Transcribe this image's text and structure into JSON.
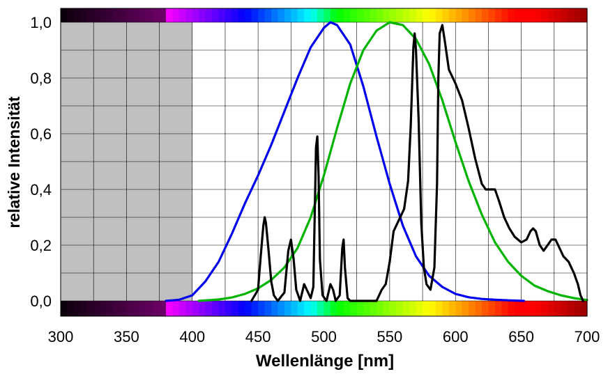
{
  "chart_data": {
    "type": "line",
    "xlabel": "Wellenlänge [nm]",
    "ylabel": "relative Intensität",
    "xlim": [
      300,
      700
    ],
    "ylim": [
      0,
      1
    ],
    "x_ticks": [
      "300",
      "350",
      "400",
      "450",
      "500",
      "550",
      "600",
      "650",
      "700"
    ],
    "y_ticks": [
      "0,0",
      "0,2",
      "0,4",
      "0,6",
      "0,8",
      "1,0"
    ],
    "grid": true,
    "shaded_region": {
      "x": [
        300,
        400
      ],
      "color": "#c0c0c0"
    },
    "spectrum_bands": true,
    "series": [
      {
        "color": "#0000ee",
        "points": [
          [
            380,
            0
          ],
          [
            390,
            0.004
          ],
          [
            400,
            0.02
          ],
          [
            410,
            0.07
          ],
          [
            420,
            0.14
          ],
          [
            430,
            0.24
          ],
          [
            440,
            0.35
          ],
          [
            450,
            0.45
          ],
          [
            460,
            0.56
          ],
          [
            470,
            0.68
          ],
          [
            480,
            0.8
          ],
          [
            490,
            0.91
          ],
          [
            500,
            0.98
          ],
          [
            505,
            1.0
          ],
          [
            510,
            0.99
          ],
          [
            520,
            0.92
          ],
          [
            530,
            0.77
          ],
          [
            540,
            0.59
          ],
          [
            550,
            0.42
          ],
          [
            560,
            0.27
          ],
          [
            570,
            0.16
          ],
          [
            580,
            0.09
          ],
          [
            590,
            0.05
          ],
          [
            600,
            0.025
          ],
          [
            610,
            0.013
          ],
          [
            620,
            0.007
          ],
          [
            630,
            0.004
          ],
          [
            640,
            0.002
          ],
          [
            652,
            0
          ]
        ]
      },
      {
        "color": "#00b400",
        "points": [
          [
            405,
            0
          ],
          [
            420,
            0.005
          ],
          [
            430,
            0.012
          ],
          [
            440,
            0.025
          ],
          [
            450,
            0.045
          ],
          [
            460,
            0.075
          ],
          [
            470,
            0.12
          ],
          [
            480,
            0.19
          ],
          [
            490,
            0.3
          ],
          [
            500,
            0.45
          ],
          [
            510,
            0.62
          ],
          [
            520,
            0.78
          ],
          [
            530,
            0.9
          ],
          [
            540,
            0.97
          ],
          [
            550,
            1.0
          ],
          [
            560,
            0.99
          ],
          [
            570,
            0.94
          ],
          [
            580,
            0.85
          ],
          [
            590,
            0.72
          ],
          [
            600,
            0.57
          ],
          [
            610,
            0.43
          ],
          [
            620,
            0.31
          ],
          [
            630,
            0.21
          ],
          [
            640,
            0.14
          ],
          [
            650,
            0.09
          ],
          [
            660,
            0.055
          ],
          [
            670,
            0.035
          ],
          [
            680,
            0.02
          ],
          [
            690,
            0.01
          ],
          [
            700,
            0.003
          ]
        ]
      },
      {
        "color": "#000000",
        "points": [
          [
            445,
            0
          ],
          [
            450,
            0.04
          ],
          [
            452,
            0.16
          ],
          [
            454,
            0.27
          ],
          [
            455,
            0.3
          ],
          [
            456,
            0.28
          ],
          [
            458,
            0.18
          ],
          [
            460,
            0.07
          ],
          [
            462,
            0.02
          ],
          [
            465,
            0
          ],
          [
            470,
            0.03
          ],
          [
            473,
            0.18
          ],
          [
            475,
            0.22
          ],
          [
            477,
            0.15
          ],
          [
            479,
            0.04
          ],
          [
            482,
            0
          ],
          [
            485,
            0.06
          ],
          [
            487,
            0.04
          ],
          [
            490,
            0.01
          ],
          [
            492,
            0.05
          ],
          [
            493,
            0.3
          ],
          [
            494,
            0.55
          ],
          [
            495,
            0.59
          ],
          [
            496,
            0.45
          ],
          [
            497,
            0.15
          ],
          [
            499,
            0.02
          ],
          [
            502,
            0
          ],
          [
            505,
            0.06
          ],
          [
            507,
            0.04
          ],
          [
            509,
            0
          ],
          [
            512,
            0.02
          ],
          [
            514,
            0.19
          ],
          [
            515,
            0.22
          ],
          [
            516,
            0.12
          ],
          [
            518,
            0.01
          ],
          [
            520,
            0
          ],
          [
            540,
            0
          ],
          [
            544,
            0.04
          ],
          [
            547,
            0.06
          ],
          [
            550,
            0.14
          ],
          [
            553,
            0.25
          ],
          [
            558,
            0.3
          ],
          [
            561,
            0.33
          ],
          [
            564,
            0.43
          ],
          [
            566,
            0.63
          ],
          [
            568,
            0.91
          ],
          [
            569,
            0.96
          ],
          [
            570,
            0.9
          ],
          [
            572,
            0.65
          ],
          [
            574,
            0.28
          ],
          [
            576,
            0.12
          ],
          [
            578,
            0.06
          ],
          [
            581,
            0.04
          ],
          [
            584,
            0.12
          ],
          [
            586,
            0.42
          ],
          [
            587,
            0.8
          ],
          [
            588,
            0.96
          ],
          [
            590,
            0.99
          ],
          [
            592,
            0.93
          ],
          [
            595,
            0.83
          ],
          [
            600,
            0.78
          ],
          [
            605,
            0.72
          ],
          [
            610,
            0.62
          ],
          [
            615,
            0.51
          ],
          [
            620,
            0.42
          ],
          [
            623,
            0.4
          ],
          [
            626,
            0.4
          ],
          [
            630,
            0.4
          ],
          [
            633,
            0.36
          ],
          [
            637,
            0.3
          ],
          [
            641,
            0.26
          ],
          [
            645,
            0.23
          ],
          [
            650,
            0.21
          ],
          [
            654,
            0.22
          ],
          [
            657,
            0.25
          ],
          [
            659,
            0.26
          ],
          [
            661,
            0.25
          ],
          [
            664,
            0.2
          ],
          [
            667,
            0.18
          ],
          [
            670,
            0.2
          ],
          [
            673,
            0.22
          ],
          [
            676,
            0.22
          ],
          [
            679,
            0.19
          ],
          [
            682,
            0.16
          ],
          [
            686,
            0.14
          ],
          [
            690,
            0.1
          ],
          [
            693,
            0.06
          ],
          [
            695,
            0.02
          ],
          [
            697,
            0
          ]
        ]
      }
    ]
  }
}
